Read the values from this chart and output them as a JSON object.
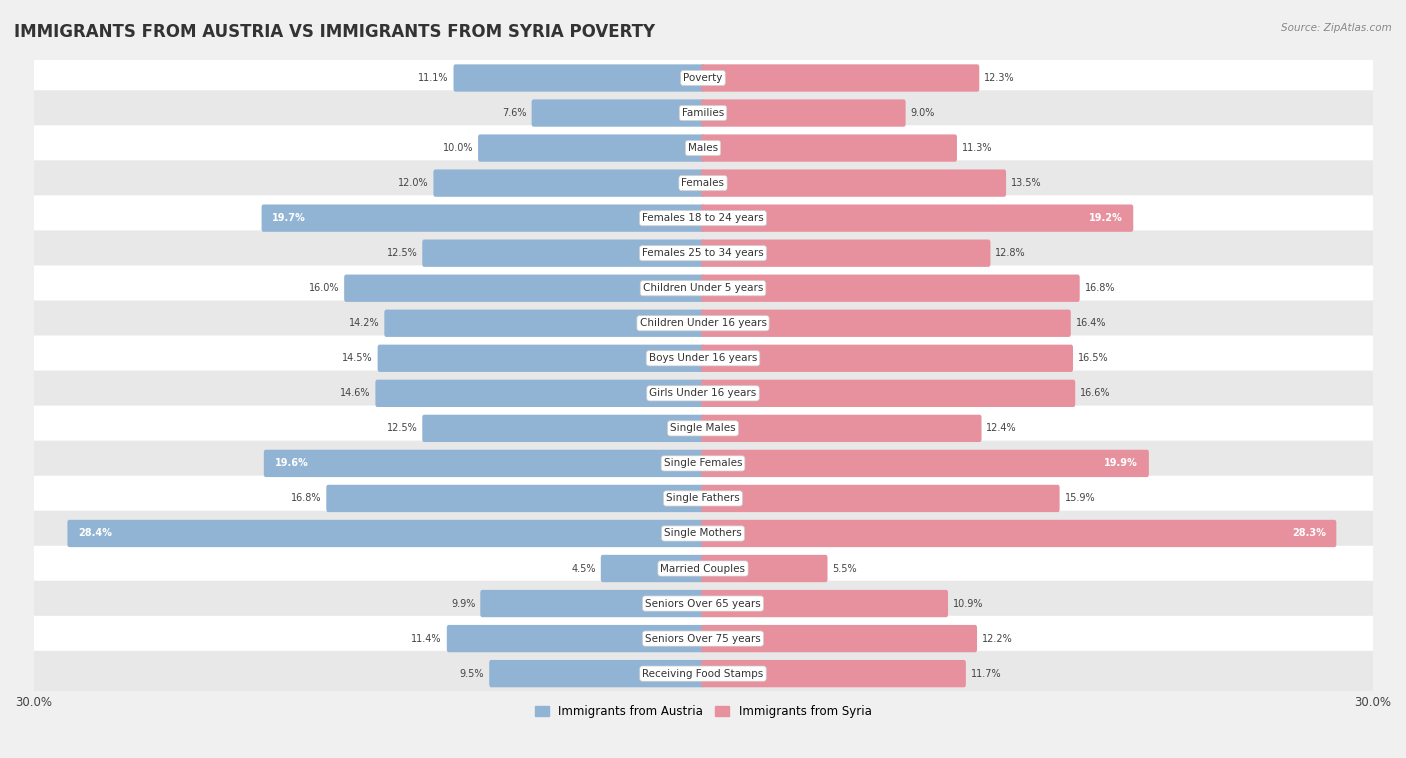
{
  "title": "IMMIGRANTS FROM AUSTRIA VS IMMIGRANTS FROM SYRIA POVERTY",
  "source": "Source: ZipAtlas.com",
  "categories": [
    "Poverty",
    "Families",
    "Males",
    "Females",
    "Females 18 to 24 years",
    "Females 25 to 34 years",
    "Children Under 5 years",
    "Children Under 16 years",
    "Boys Under 16 years",
    "Girls Under 16 years",
    "Single Males",
    "Single Females",
    "Single Fathers",
    "Single Mothers",
    "Married Couples",
    "Seniors Over 65 years",
    "Seniors Over 75 years",
    "Receiving Food Stamps"
  ],
  "austria_values": [
    11.1,
    7.6,
    10.0,
    12.0,
    19.7,
    12.5,
    16.0,
    14.2,
    14.5,
    14.6,
    12.5,
    19.6,
    16.8,
    28.4,
    4.5,
    9.9,
    11.4,
    9.5
  ],
  "syria_values": [
    12.3,
    9.0,
    11.3,
    13.5,
    19.2,
    12.8,
    16.8,
    16.4,
    16.5,
    16.6,
    12.4,
    19.9,
    15.9,
    28.3,
    5.5,
    10.9,
    12.2,
    11.7
  ],
  "austria_color": "#92b4d4",
  "syria_color": "#e8919e",
  "austria_label": "Immigrants from Austria",
  "syria_label": "Immigrants from Syria",
  "axis_max": 30.0,
  "background_color": "#f0f0f0",
  "row_color_light": "#ffffff",
  "row_color_dark": "#e8e8e8",
  "title_fontsize": 12,
  "label_fontsize": 7.5,
  "value_fontsize": 7.0
}
